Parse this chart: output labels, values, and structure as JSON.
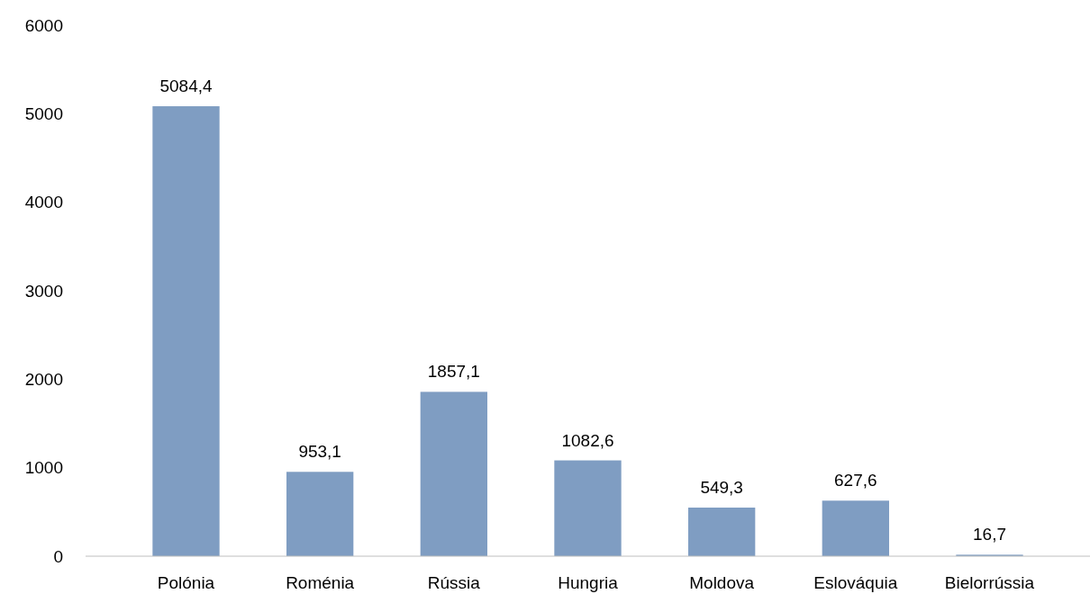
{
  "chart_data": {
    "type": "bar",
    "categories": [
      "Polónia",
      "Roménia",
      "Rússia",
      "Hungria",
      "Moldova",
      "Eslováquia",
      "Bielorrússia"
    ],
    "values": [
      5084.4,
      953.1,
      1857.1,
      1082.6,
      549.3,
      627.6,
      16.7
    ],
    "value_labels": [
      "5084,4",
      "953,1",
      "1857,1",
      "1082,6",
      "549,3",
      "627,6",
      "16,7"
    ],
    "color": "#7f9dc2",
    "ylim": [
      0,
      6000
    ],
    "yticks": [
      0,
      1000,
      2000,
      3000,
      4000,
      5000,
      6000
    ],
    "grid": false
  }
}
